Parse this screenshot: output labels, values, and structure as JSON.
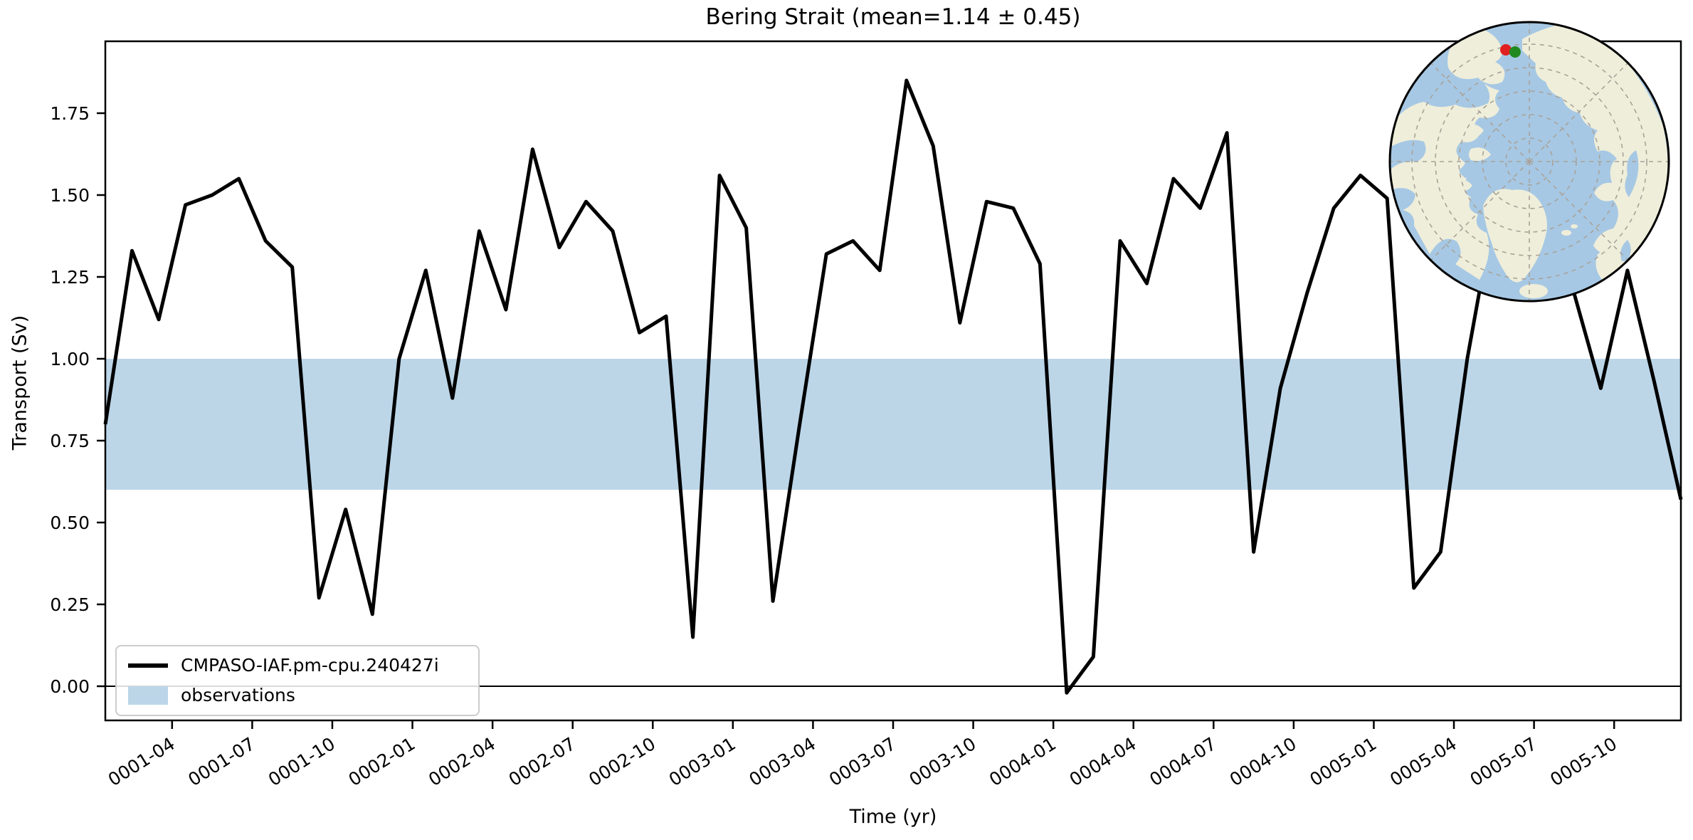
{
  "figure": {
    "title": "Bering Strait (mean=1.14 ± 0.45)"
  },
  "axes": {
    "xlabel": "Time (yr)",
    "ylabel": "Transport (Sv)"
  },
  "legend": {
    "items": [
      {
        "label": "CMPASO-IAF.pm-cpu.240427i",
        "swatch": "line",
        "color": "#000000"
      },
      {
        "label": "observations",
        "swatch": "patch",
        "color": "#bcd6e8"
      }
    ]
  },
  "chart_data": {
    "type": "line",
    "title": "Bering Strait (mean=1.14 ± 0.45)",
    "xlabel": "Time (yr)",
    "ylabel": "Transport (Sv)",
    "ylim": [
      -0.104,
      1.97
    ],
    "yticks": [
      0.0,
      0.25,
      0.5,
      0.75,
      1.0,
      1.25,
      1.5,
      1.75
    ],
    "xtick_labels": [
      "0001-04",
      "0001-07",
      "0001-10",
      "0002-01",
      "0002-04",
      "0002-07",
      "0002-10",
      "0003-01",
      "0003-04",
      "0003-07",
      "0003-10",
      "0004-01",
      "0004-04",
      "0004-07",
      "0004-10",
      "0005-01",
      "0005-04",
      "0005-07",
      "0005-10"
    ],
    "grid": false,
    "legend_position": "lower left",
    "zero_line": 0.0,
    "x": [
      "0001-01",
      "0001-02",
      "0001-03",
      "0001-04",
      "0001-05",
      "0001-06",
      "0001-07",
      "0001-08",
      "0001-09",
      "0001-10",
      "0001-11",
      "0001-12",
      "0002-01",
      "0002-02",
      "0002-03",
      "0002-04",
      "0002-05",
      "0002-06",
      "0002-07",
      "0002-08",
      "0002-09",
      "0002-10",
      "0002-11",
      "0002-12",
      "0003-01",
      "0003-02",
      "0003-03",
      "0003-04",
      "0003-05",
      "0003-06",
      "0003-07",
      "0003-08",
      "0003-09",
      "0003-10",
      "0003-11",
      "0003-12",
      "0004-01",
      "0004-02",
      "0004-03",
      "0004-04",
      "0004-05",
      "0004-06",
      "0004-07",
      "0004-08",
      "0004-09",
      "0004-10",
      "0004-11",
      "0004-12",
      "0005-01",
      "0005-02",
      "0005-03",
      "0005-04",
      "0005-05",
      "0005-06",
      "0005-07",
      "0005-08",
      "0005-09",
      "0005-10",
      "0005-11",
      "0005-12"
    ],
    "series": [
      {
        "name": "CMPASO-IAF.pm-cpu.240427i",
        "color": "#000000",
        "linewidth": 5,
        "values": [
          0.8,
          1.33,
          1.12,
          1.47,
          1.5,
          1.55,
          1.36,
          1.28,
          0.27,
          0.54,
          0.22,
          1.0,
          1.27,
          0.88,
          1.39,
          1.15,
          1.64,
          1.34,
          1.48,
          1.39,
          1.08,
          1.13,
          0.15,
          1.56,
          1.4,
          0.26,
          0.8,
          1.32,
          1.36,
          1.27,
          1.85,
          1.65,
          1.11,
          1.48,
          1.46,
          1.29,
          -0.02,
          0.09,
          1.36,
          1.23,
          1.55,
          1.46,
          1.69,
          0.41,
          0.91,
          1.2,
          1.46,
          1.56,
          1.49,
          0.3,
          0.41,
          1.0,
          1.45,
          1.62,
          1.4,
          1.2,
          0.91,
          1.27,
          0.93,
          0.57
        ]
      }
    ],
    "observations_band": {
      "label": "observations",
      "min": 0.6,
      "max": 1.0,
      "color": "#bcd6e8"
    }
  },
  "inset_map": {
    "projection": "north-polar-stereographic",
    "ocean_color": "#a6c8e4",
    "land_color": "#efeeda",
    "graticule_color": "#a9a29a",
    "markers": [
      {
        "name": "site-marker-red",
        "color": "#e02020",
        "x": 167,
        "y": 43
      },
      {
        "name": "site-marker-green",
        "color": "#208a20",
        "x": 180,
        "y": 46
      }
    ]
  }
}
